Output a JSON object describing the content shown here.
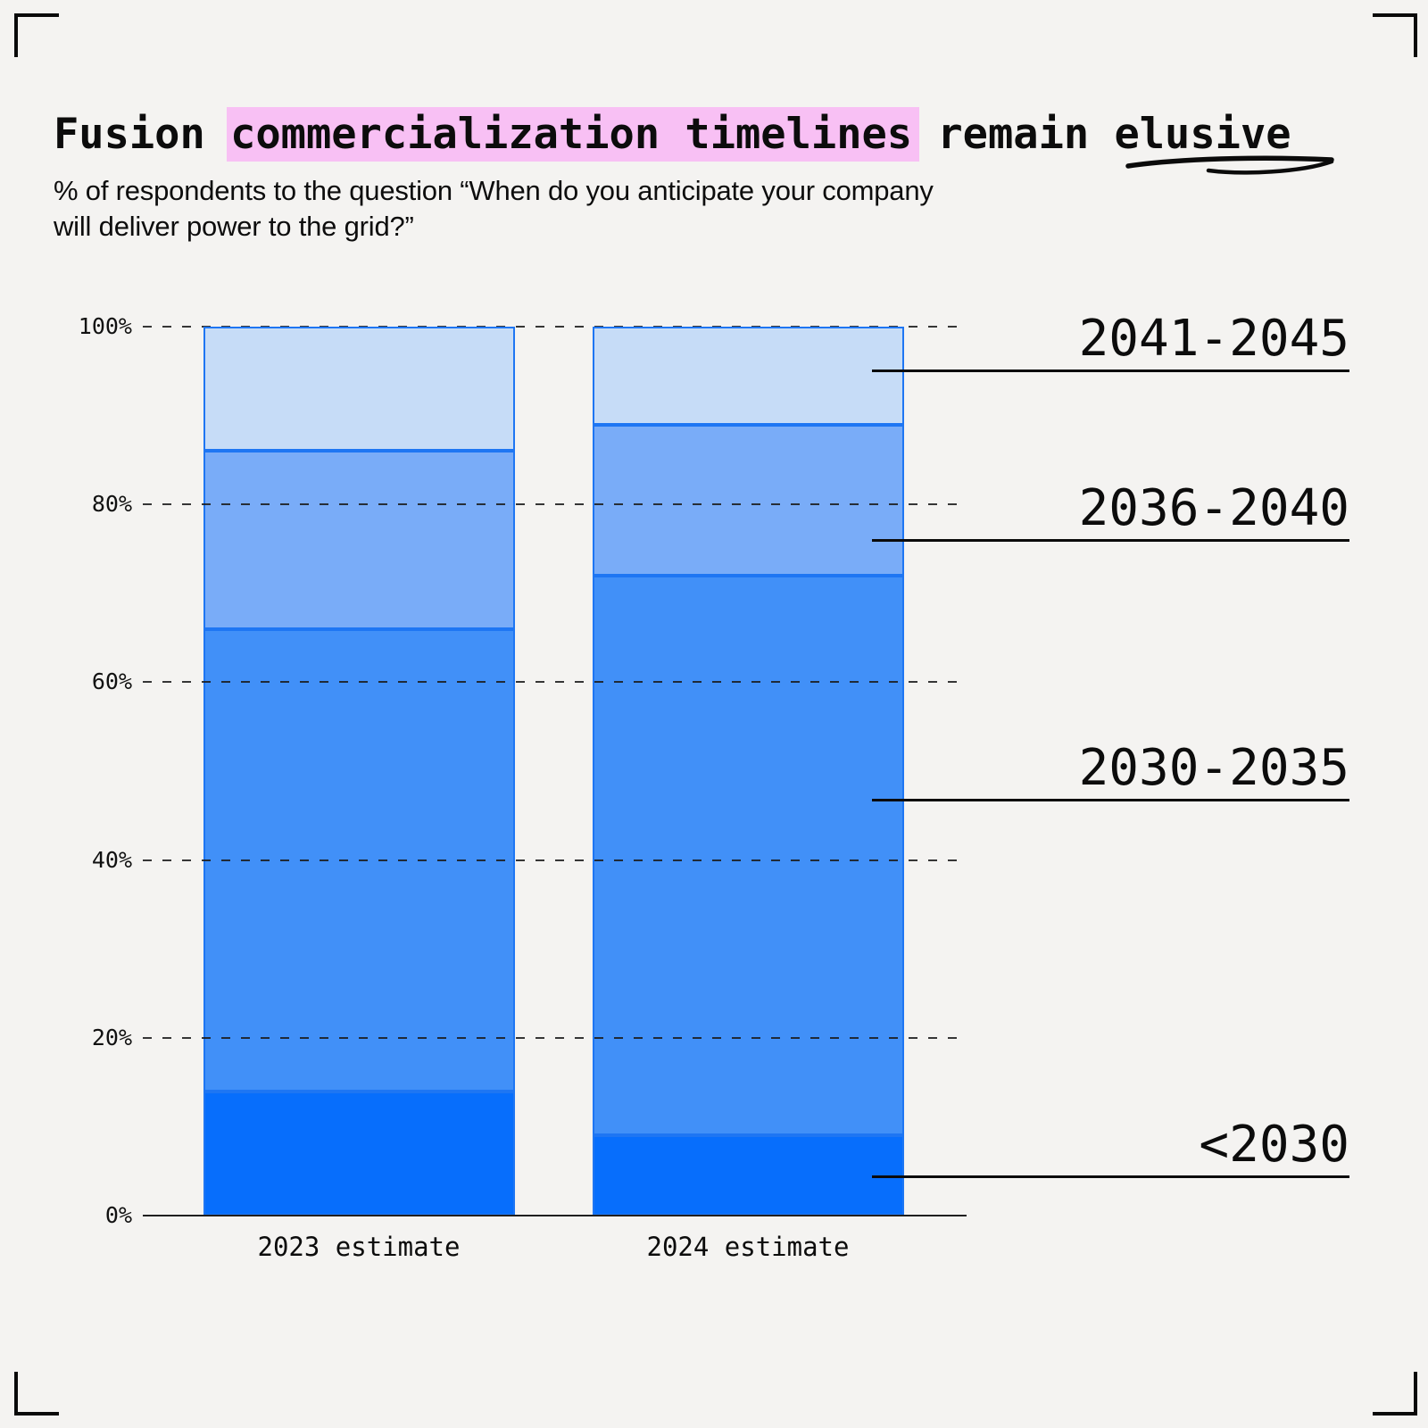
{
  "title": {
    "pre": "Fusion",
    "highlight": "commercialization timelines",
    "mid": "remain",
    "tail": "elusive"
  },
  "subtitle": {
    "line1": "% of respondents to the question “When do you anticipate your company",
    "line2": "will deliver power to the grid?”"
  },
  "chart_data": {
    "type": "bar",
    "variant": "100%-stacked-column",
    "title": "Fusion commercialization timelines remain elusive",
    "subtitle": "% of respondents to the question “When do you anticipate your company will deliver power to the grid?”",
    "categories": [
      "2023 estimate",
      "2024 estimate"
    ],
    "series": [
      {
        "name": "<2030",
        "color": "#076efc",
        "values": [
          14,
          9
        ]
      },
      {
        "name": "2030-2035",
        "color": "#4190f8",
        "values": [
          52,
          63
        ]
      },
      {
        "name": "2036-2040",
        "color": "#79acf8",
        "values": [
          20,
          17
        ]
      },
      {
        "name": "2041-2045",
        "color": "#c6dcf7",
        "values": [
          14,
          11
        ]
      }
    ],
    "y_axis": {
      "ticks": [
        "0%",
        "20%",
        "40%",
        "60%",
        "80%",
        "100%"
      ],
      "min": 0,
      "max": 100,
      "grid": "dashed"
    },
    "legend_position": "right",
    "xlabel": "",
    "ylabel": ""
  },
  "colors": {
    "background": "#f4f3f1",
    "highlight": "#f8c0f4",
    "bar_border": "#1e76f3",
    "text": "#0c0c0c"
  }
}
